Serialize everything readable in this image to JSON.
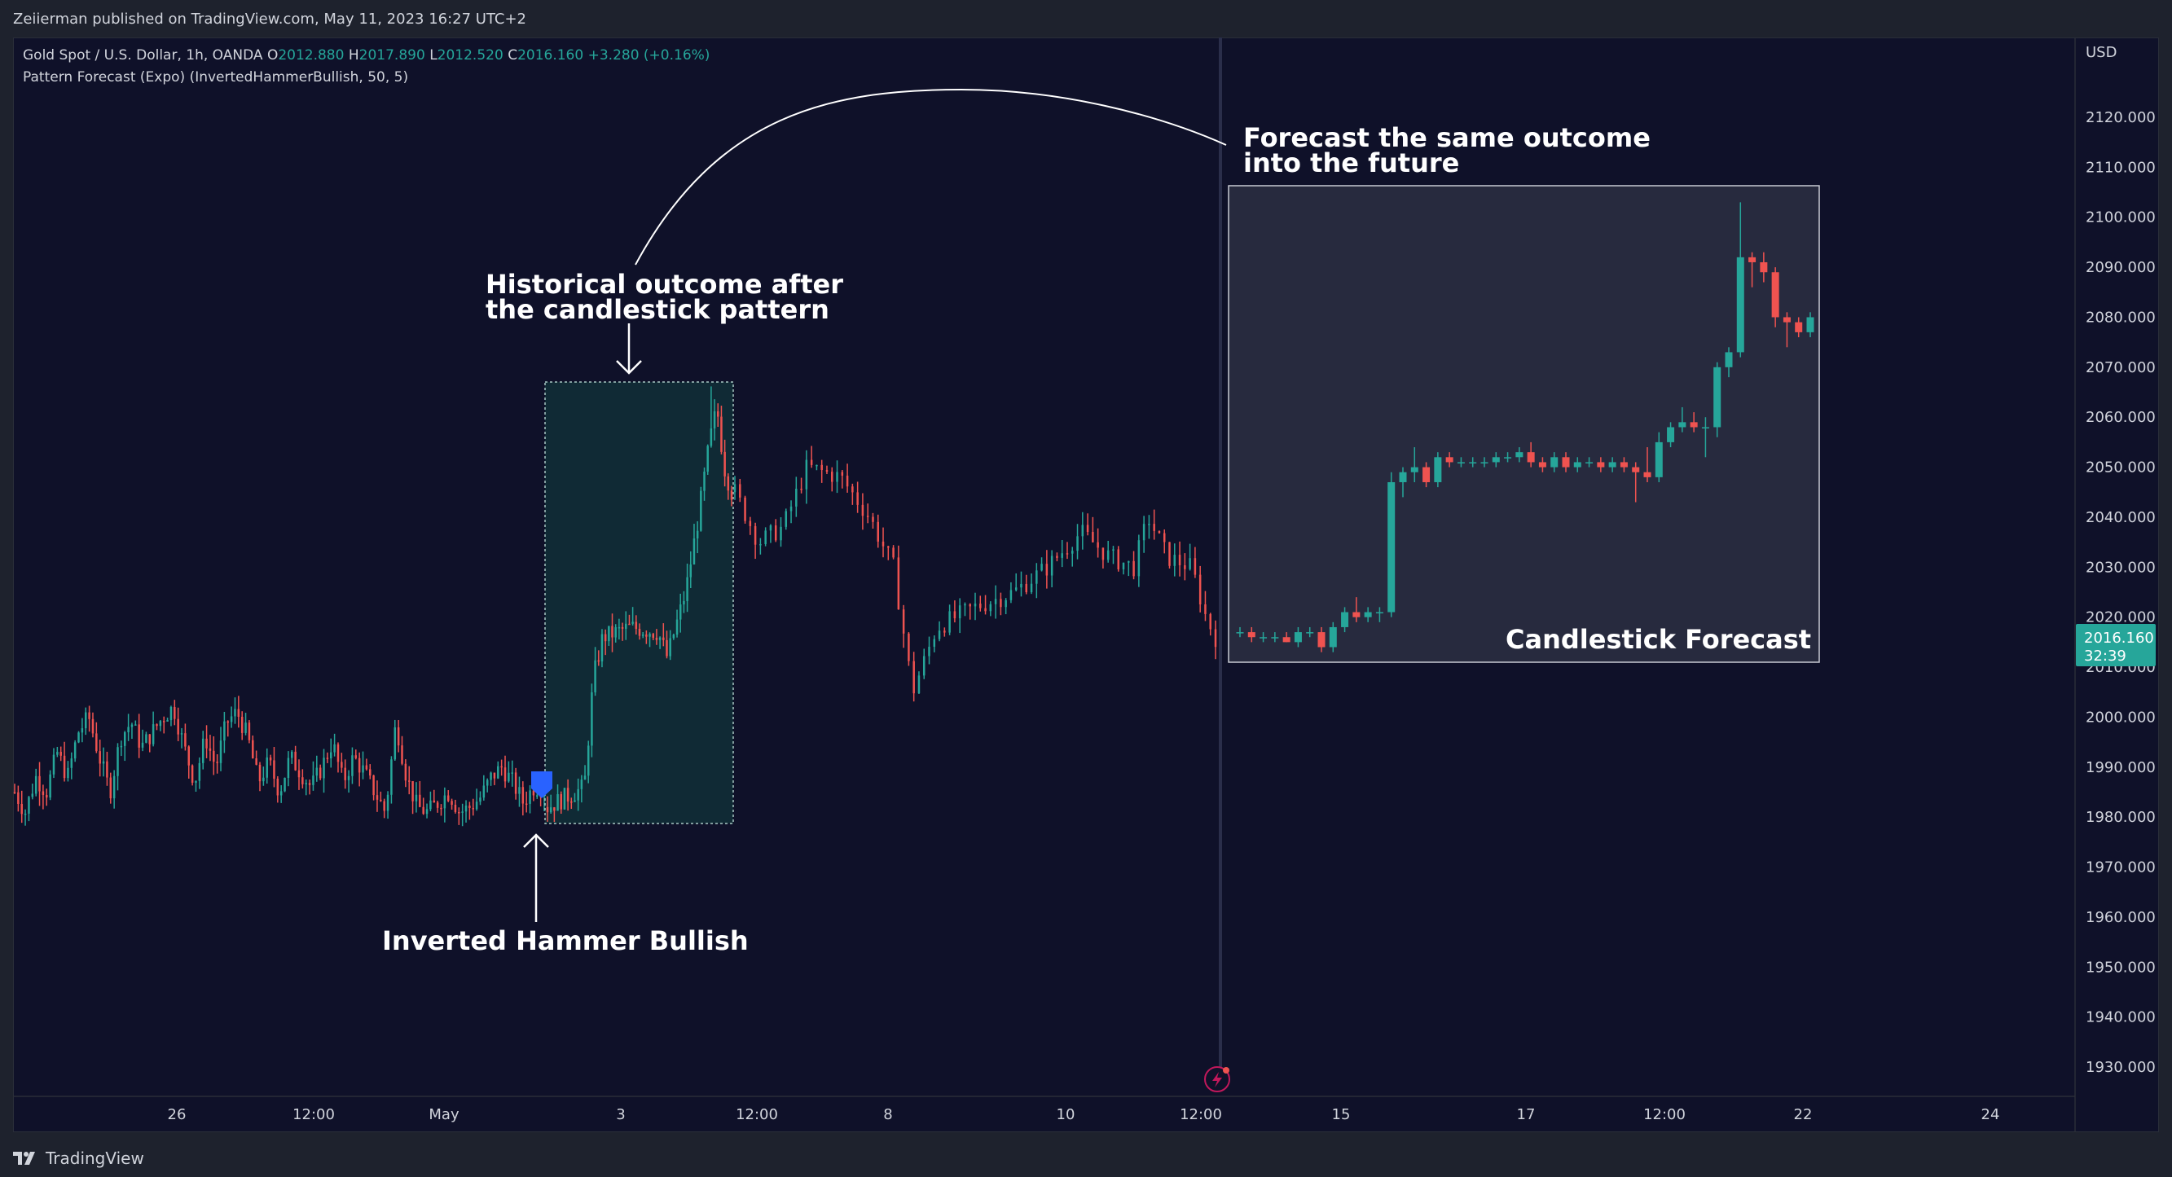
{
  "header": {
    "publisher_text": "Zeiierman published on TradingView.com, May 11, 2023 16:27 UTC+2"
  },
  "footer": {
    "brand": "TradingView"
  },
  "legend": {
    "symbol": "Gold Spot / U.S. Dollar, 1h, OANDA",
    "open_label": "O",
    "open": "2012.880",
    "high_label": "H",
    "high": "2017.890",
    "low_label": "L",
    "low": "2012.520",
    "close_label": "C",
    "close": "2016.160",
    "change": "+3.280 (+0.16%)",
    "indicator": "Pattern Forecast (Expo) (InvertedHammerBullish, 50, 5)"
  },
  "annotations": {
    "pattern": "Inverted Hammer Bullish",
    "historical_line1": "Historical outcome after",
    "historical_line2": "the candlestick pattern",
    "forecast_line1": "Forecast the same outcome",
    "forecast_line2": "into the future",
    "forecast_box_label": "Candlestick Forecast"
  },
  "price_badge": {
    "price": "2016.160",
    "countdown": "32:39"
  },
  "colors": {
    "background": "#0f1129",
    "up": "#26a69a",
    "down": "#ef5350",
    "text": "#d1d4dc",
    "marker": "#2962ff",
    "badge": "#26a69a"
  },
  "chart_data": {
    "type": "candlestick",
    "symbol": "Gold Spot / U.S. Dollar",
    "timeframe": "1h",
    "currency": "USD",
    "y_axis_labels": [
      "2120.000",
      "2110.000",
      "2100.000",
      "2090.000",
      "2080.000",
      "2070.000",
      "2060.000",
      "2050.000",
      "2040.000",
      "2030.000",
      "2020.000",
      "2010.000",
      "2000.000",
      "1990.000",
      "1980.000",
      "1970.000",
      "1960.000",
      "1950.000",
      "1940.000",
      "1930.000"
    ],
    "ylim": [
      1925,
      2130
    ],
    "x_axis_labels": [
      "26",
      "12:00",
      "May",
      "3",
      "12:00",
      "8",
      "10",
      "12:00",
      "15",
      "17",
      "12:00",
      "22",
      "24"
    ],
    "last_price": 2016.16,
    "ohlc": {
      "open": 2012.88,
      "high": 2017.89,
      "low": 2012.52,
      "close": 2016.16
    },
    "historical_path": [
      [
        0,
        1985
      ],
      [
        0.02,
        1981
      ],
      [
        0.04,
        1988
      ],
      [
        0.06,
        1985
      ],
      [
        0.08,
        1993
      ],
      [
        0.1,
        1988
      ],
      [
        0.12,
        1997
      ],
      [
        0.14,
        2000
      ],
      [
        0.16,
        1992
      ],
      [
        0.18,
        1985
      ],
      [
        0.2,
        1996
      ],
      [
        0.22,
        1999
      ],
      [
        0.24,
        1994
      ],
      [
        0.26,
        1997
      ],
      [
        0.28,
        2000
      ],
      [
        0.3,
        2002
      ],
      [
        0.32,
        1994
      ],
      [
        0.34,
        1987
      ],
      [
        0.36,
        1996
      ],
      [
        0.38,
        1990
      ],
      [
        0.4,
        1999
      ],
      [
        0.42,
        2001
      ],
      [
        0.44,
        1996
      ],
      [
        0.46,
        1987
      ],
      [
        0.48,
        1991
      ],
      [
        0.5,
        1985
      ],
      [
        0.52,
        1992
      ],
      [
        0.54,
        1989
      ],
      [
        0.56,
        1986
      ],
      [
        0.58,
        1990
      ],
      [
        0.6,
        1995
      ],
      [
        0.62,
        1987
      ],
      [
        0.64,
        1992
      ],
      [
        0.66,
        1989
      ],
      [
        0.68,
        1985
      ],
      [
        0.7,
        1981
      ],
      [
        0.72,
        1999
      ],
      [
        0.74,
        1988
      ],
      [
        0.76,
        1982
      ],
      [
        0.78,
        1981
      ],
      [
        0.8,
        1983
      ],
      [
        0.82,
        1985
      ],
      [
        0.84,
        1981
      ],
      [
        0.86,
        1982
      ],
      [
        0.88,
        1984
      ],
      [
        0.9,
        1988
      ],
      [
        0.92,
        1990
      ],
      [
        0.94,
        1987
      ],
      [
        0.96,
        1983
      ],
      [
        0.98,
        1986
      ]
    ],
    "marker_label": "Inverted Hammer Bullish",
    "forecast_candles": [
      [
        2017,
        2018,
        2016,
        2017
      ],
      [
        2017,
        2018,
        2015,
        2016
      ],
      [
        2016,
        2017,
        2015,
        2016
      ],
      [
        2016,
        2017,
        2015,
        2016
      ],
      [
        2016,
        2017,
        2015,
        2015
      ],
      [
        2015,
        2018,
        2014,
        2017
      ],
      [
        2017,
        2018,
        2016,
        2017
      ],
      [
        2017,
        2018,
        2013,
        2014
      ],
      [
        2014,
        2019,
        2013,
        2018
      ],
      [
        2018,
        2022,
        2017,
        2021
      ],
      [
        2021,
        2024,
        2019,
        2020
      ],
      [
        2020,
        2022,
        2019,
        2021
      ],
      [
        2021,
        2022,
        2019,
        2021
      ],
      [
        2021,
        2049,
        2020,
        2047
      ],
      [
        2047,
        2050,
        2044,
        2049
      ],
      [
        2049,
        2054,
        2047,
        2050
      ],
      [
        2050,
        2051,
        2046,
        2047
      ],
      [
        2047,
        2053,
        2046,
        2052
      ],
      [
        2052,
        2053,
        2050,
        2051
      ],
      [
        2051,
        2052,
        2050,
        2051
      ],
      [
        2051,
        2052,
        2050,
        2051
      ],
      [
        2051,
        2052,
        2050,
        2051
      ],
      [
        2051,
        2053,
        2050,
        2052
      ],
      [
        2052,
        2053,
        2051,
        2052
      ],
      [
        2052,
        2054,
        2051,
        2053
      ],
      [
        2053,
        2055,
        2050,
        2051
      ],
      [
        2051,
        2052,
        2049,
        2050
      ],
      [
        2050,
        2053,
        2049,
        2052
      ],
      [
        2052,
        2053,
        2049,
        2050
      ],
      [
        2050,
        2052,
        2049,
        2051
      ],
      [
        2051,
        2052,
        2050,
        2051
      ],
      [
        2051,
        2052,
        2049,
        2050
      ],
      [
        2050,
        2052,
        2049,
        2051
      ],
      [
        2051,
        2052,
        2049,
        2050
      ],
      [
        2050,
        2051,
        2043,
        2049
      ],
      [
        2049,
        2054,
        2047,
        2048
      ],
      [
        2048,
        2057,
        2047,
        2055
      ],
      [
        2055,
        2059,
        2054,
        2058
      ],
      [
        2058,
        2062,
        2057,
        2059
      ],
      [
        2059,
        2061,
        2057,
        2058
      ],
      [
        2058,
        2060,
        2052,
        2058
      ],
      [
        2058,
        2071,
        2056,
        2070
      ],
      [
        2070,
        2074,
        2068,
        2073
      ],
      [
        2073,
        2103,
        2072,
        2092
      ],
      [
        2092,
        2093,
        2086,
        2091
      ],
      [
        2091,
        2093,
        2087,
        2089
      ],
      [
        2089,
        2090,
        2078,
        2080
      ],
      [
        2080,
        2081,
        2074,
        2079
      ],
      [
        2079,
        2080,
        2076,
        2077
      ],
      [
        2077,
        2081,
        2076,
        2080
      ]
    ]
  }
}
